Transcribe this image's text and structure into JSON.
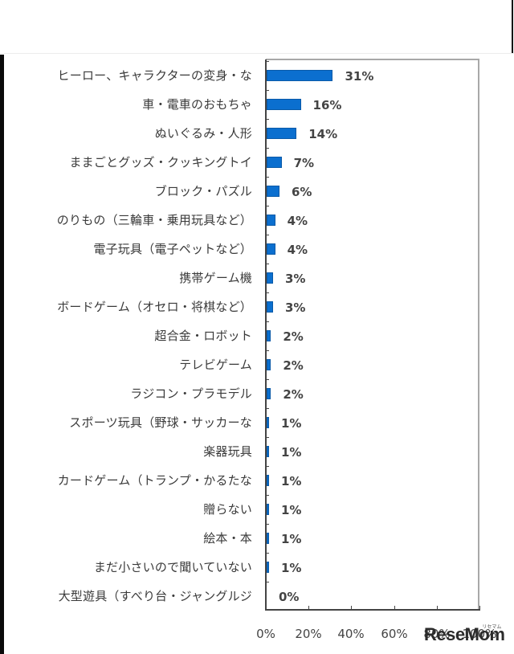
{
  "chart_data": {
    "type": "bar",
    "orientation": "horizontal",
    "title": "",
    "xlabel": "",
    "ylabel": "",
    "xlim": [
      0,
      100
    ],
    "x_ticks": [
      "0%",
      "20%",
      "40%",
      "60%",
      "80%",
      "100%"
    ],
    "grid": false,
    "legend": null,
    "bar_color": "#0b6fcf",
    "categories": [
      "ヒーロー、キャラクターの変身・な",
      "車・電車のおもちゃ",
      "ぬいぐるみ・人形",
      "ままごとグッズ・クッキングトイ",
      "ブロック・パズル",
      "のりもの（三輪車・乗用玩具など）",
      "電子玩具（電子ペットなど）",
      "携帯ゲーム機",
      "ボードゲーム（オセロ・将棋など）",
      "超合金・ロボット",
      "テレビゲーム",
      "ラジコン・プラモデル",
      "スポーツ玩具（野球・サッカーな",
      "楽器玩具",
      "カードゲーム（トランプ・かるたな",
      "贈らない",
      "絵本・本",
      "まだ小さいので聞いていない",
      "大型遊具（すべり台・ジャングルジ"
    ],
    "values": [
      31,
      16,
      14,
      7,
      6,
      4,
      4,
      3,
      3,
      2,
      2,
      2,
      1,
      1,
      1,
      1,
      1,
      1,
      0
    ],
    "value_labels": [
      "31%",
      "16%",
      "14%",
      "7%",
      "6%",
      "4%",
      "4%",
      "3%",
      "3%",
      "2%",
      "2%",
      "2%",
      "1%",
      "1%",
      "1%",
      "1%",
      "1%",
      "1%",
      "0%"
    ]
  },
  "watermark": {
    "text": "ReseMom",
    "sub": "リセマム"
  }
}
